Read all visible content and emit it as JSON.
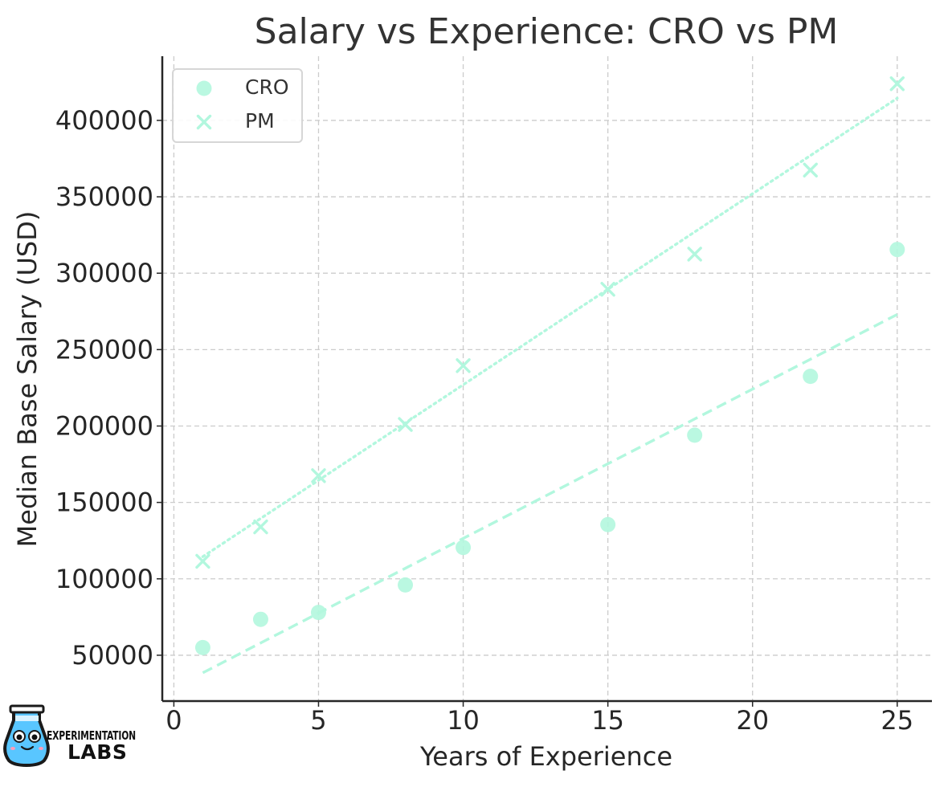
{
  "chart_data": {
    "type": "scatter",
    "title": "Salary vs Experience: CRO vs PM",
    "xlabel": "Years of Experience",
    "ylabel": "Median Base Salary (USD)",
    "xlim": [
      -0.4,
      26.2
    ],
    "ylim": [
      20000,
      442000
    ],
    "xticks": [
      0,
      5,
      10,
      15,
      20,
      25
    ],
    "yticks": [
      50000,
      100000,
      150000,
      200000,
      250000,
      300000,
      350000,
      400000
    ],
    "grid": true,
    "legend": "top-left",
    "series": [
      {
        "name": "CRO",
        "marker": "circle",
        "color": "#b2f7de",
        "points": [
          {
            "x": 1,
            "y": 55000
          },
          {
            "x": 3,
            "y": 73500
          },
          {
            "x": 5,
            "y": 78000
          },
          {
            "x": 8,
            "y": 96000
          },
          {
            "x": 10,
            "y": 120500
          },
          {
            "x": 15,
            "y": 135500
          },
          {
            "x": 18,
            "y": 194000
          },
          {
            "x": 22,
            "y": 232500
          },
          {
            "x": 25,
            "y": 315500
          }
        ],
        "trendline": {
          "style": "dashed",
          "points": [
            {
              "x": 1,
              "y": 38500
            },
            {
              "x": 25,
              "y": 273000
            }
          ]
        }
      },
      {
        "name": "PM",
        "marker": "x",
        "color": "#b2f7de",
        "points": [
          {
            "x": 1,
            "y": 111500
          },
          {
            "x": 3,
            "y": 134000
          },
          {
            "x": 5,
            "y": 167500
          },
          {
            "x": 8,
            "y": 201000
          },
          {
            "x": 10,
            "y": 239500
          },
          {
            "x": 15,
            "y": 289500
          },
          {
            "x": 18,
            "y": 312500
          },
          {
            "x": 22,
            "y": 367500
          },
          {
            "x": 25,
            "y": 424000
          }
        ],
        "trendline": {
          "style": "dotted",
          "points": [
            {
              "x": 1,
              "y": 114500
            },
            {
              "x": 25,
              "y": 414500
            }
          ]
        }
      }
    ]
  },
  "logo": {
    "line1": "EXPERIMENTATION",
    "line2": "LABS"
  },
  "colors": {
    "grid": "#cccccc",
    "axis": "#262626",
    "legend_border": "#d6d6d6",
    "logo_flask_blue": "#59c6ff",
    "logo_outline": "#1a1a1a"
  }
}
